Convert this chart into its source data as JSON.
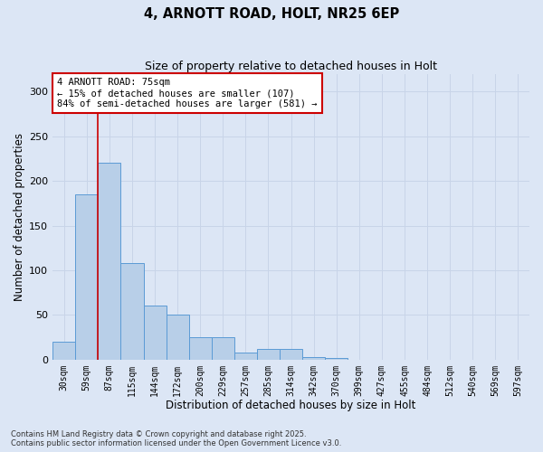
{
  "title1": "4, ARNOTT ROAD, HOLT, NR25 6EP",
  "title2": "Size of property relative to detached houses in Holt",
  "xlabel": "Distribution of detached houses by size in Holt",
  "ylabel": "Number of detached properties",
  "categories": [
    "30sqm",
    "59sqm",
    "87sqm",
    "115sqm",
    "144sqm",
    "172sqm",
    "200sqm",
    "229sqm",
    "257sqm",
    "285sqm",
    "314sqm",
    "342sqm",
    "370sqm",
    "399sqm",
    "427sqm",
    "455sqm",
    "484sqm",
    "512sqm",
    "540sqm",
    "569sqm",
    "597sqm"
  ],
  "values": [
    20,
    185,
    220,
    108,
    60,
    50,
    25,
    25,
    8,
    12,
    12,
    3,
    2,
    0,
    0,
    0,
    0,
    0,
    0,
    0,
    0
  ],
  "bar_color": "#b8cfe8",
  "bar_edge_color": "#5b9bd5",
  "property_line_color": "#cc0000",
  "annotation_text": "4 ARNOTT ROAD: 75sqm\n← 15% of detached houses are smaller (107)\n84% of semi-detached houses are larger (581) →",
  "annotation_box_color": "#ffffff",
  "annotation_box_edge_color": "#cc0000",
  "grid_color": "#c8d4e8",
  "background_color": "#dce6f5",
  "footer": "Contains HM Land Registry data © Crown copyright and database right 2025.\nContains public sector information licensed under the Open Government Licence v3.0.",
  "ylim": [
    0,
    320
  ],
  "yticks": [
    0,
    50,
    100,
    150,
    200,
    250,
    300
  ]
}
